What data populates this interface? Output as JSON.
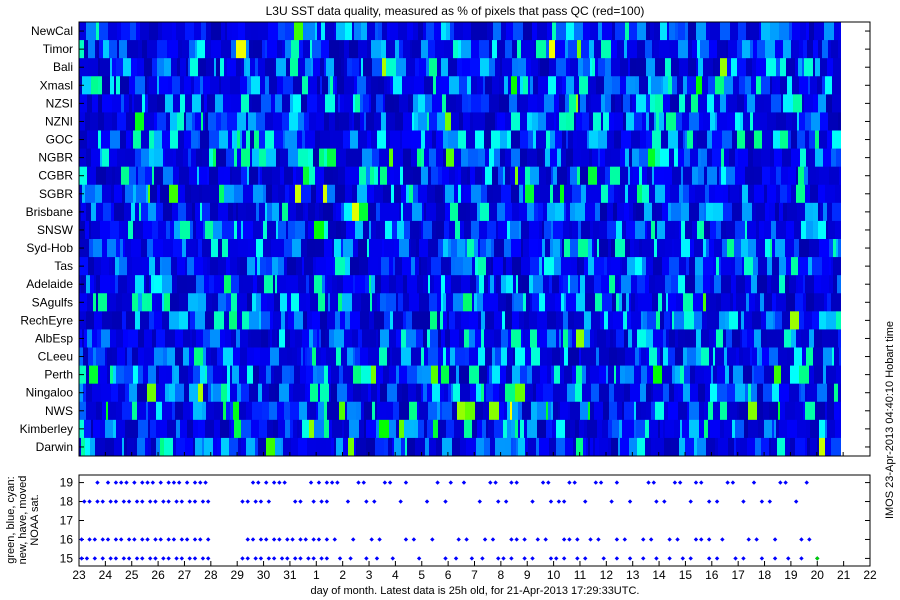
{
  "chart_data": [
    {
      "type": "heatmap",
      "title": "L3U SST data quality, measured as % of pixels that pass QC (red=100)",
      "rows": [
        "NewCal",
        "Timor",
        "Bali",
        "Xmasl",
        "NZSI",
        "NZNI",
        "GOC",
        "NGBR",
        "CGBR",
        "SGBR",
        "Brisbane",
        "SNSW",
        "Syd-Hob",
        "Tas",
        "Adelaide",
        "SAgulfs",
        "RechEyre",
        "AlbEsp",
        "CLeeu",
        "Perth",
        "Ningaloo",
        "NWS",
        "Kimberley",
        "Darwin"
      ],
      "xlim": [
        23,
        52
      ],
      "value_range": [
        0,
        100
      ],
      "colorscale": [
        "#00008f",
        "#0000ff",
        "#00ffff",
        "#00ff00",
        "#ffff00",
        "#ff0000"
      ],
      "grid": false,
      "right_label": "IMOS 23-Apr-2013 04:40:10 Hobart time"
    },
    {
      "type": "scatter",
      "ylabel": [
        "green, blue, cyan:",
        "new, have, moved",
        "NOAA sat."
      ],
      "xlabel": "day of month. Latest data is 25h old, for 21-Apr-2013 17:29:33UTC.",
      "x_tick_labels": [
        "23",
        "24",
        "25",
        "26",
        "27",
        "28",
        "29",
        "30",
        "31",
        "1",
        "2",
        "3",
        "4",
        "5",
        "6",
        "7",
        "8",
        "9",
        "10",
        "11",
        "12",
        "13",
        "14",
        "15",
        "16",
        "17",
        "18",
        "19",
        "20",
        "21",
        "22"
      ],
      "xlim": [
        23,
        53
      ],
      "ylim": [
        14.6,
        19.4
      ],
      "y_ticks": [
        15,
        16,
        17,
        18,
        19
      ],
      "series": [
        {
          "sat": 15,
          "x": [
            23.1,
            23.3,
            23.6,
            23.9,
            24.2,
            24.4,
            24.7,
            24.9,
            25.2,
            25.4,
            25.7,
            25.9,
            26.2,
            26.4,
            26.7,
            26.9,
            27.2,
            27.4,
            27.7,
            27.9,
            29.2,
            29.4,
            29.7,
            29.9,
            30.2,
            30.4,
            30.7,
            30.9,
            31.2,
            31.4,
            31.7,
            31.9,
            32.2,
            32.4,
            32.9,
            33.3,
            33.9,
            34.3,
            34.9,
            35.9,
            36.9,
            37.3,
            37.9,
            38.3,
            38.9,
            39.1,
            39.4,
            39.9,
            40.2,
            40.9,
            41.1,
            41.4,
            41.9,
            42.2,
            42.9,
            43.4,
            43.9,
            44.4,
            44.9,
            45.4,
            45.9,
            46.2,
            46.9,
            47.2,
            47.9,
            48.2,
            48.9,
            49.4,
            49.9,
            50.4,
            51.0
          ],
          "color": "#0000ff"
        },
        {
          "sat": 15,
          "x": [
            51.0
          ],
          "color": "#00d000"
        },
        {
          "sat": 16,
          "x": [
            23.1,
            23.4,
            23.6,
            23.9,
            24.1,
            24.4,
            24.6,
            24.9,
            25.1,
            25.4,
            25.6,
            25.9,
            26.1,
            26.4,
            26.6,
            26.9,
            27.1,
            27.4,
            27.6,
            27.9,
            29.4,
            29.6,
            29.9,
            30.1,
            30.4,
            30.6,
            30.9,
            31.1,
            31.4,
            31.6,
            31.9,
            32.1,
            32.4,
            32.7,
            33.4,
            34.1,
            34.4,
            35.4,
            35.7,
            36.4,
            37.4,
            37.7,
            38.4,
            38.7,
            39.4,
            39.6,
            39.9,
            40.4,
            40.7,
            41.4,
            41.6,
            41.9,
            42.4,
            42.7,
            43.4,
            43.7,
            44.4,
            44.7,
            45.4,
            45.7,
            46.4,
            46.6,
            46.9,
            47.4,
            48.4,
            48.7,
            49.4,
            50.4,
            50.7
          ],
          "color": "#0000ff"
        },
        {
          "sat": 18,
          "x": [
            23.2,
            23.4,
            23.7,
            23.9,
            24.2,
            24.4,
            24.7,
            24.9,
            25.2,
            25.4,
            25.7,
            25.9,
            26.2,
            26.4,
            26.7,
            26.9,
            27.2,
            27.4,
            27.7,
            27.9,
            29.2,
            29.4,
            29.7,
            29.9,
            30.2,
            31.2,
            31.4,
            31.9,
            32.2,
            32.4,
            33.2,
            33.9,
            34.2,
            35.2,
            36.2,
            36.9,
            38.2,
            38.9,
            39.2,
            40.2,
            40.9,
            41.2,
            41.4,
            42.2,
            43.2,
            43.9,
            44.9,
            45.2,
            46.2,
            46.9,
            47.2,
            48.2,
            48.9,
            49.2,
            50.2
          ],
          "color": "#0000ff"
        },
        {
          "sat": 19,
          "x": [
            23.7,
            24.1,
            24.4,
            24.6,
            24.8,
            25.1,
            25.4,
            25.6,
            25.8,
            26.1,
            26.4,
            26.6,
            26.8,
            27.1,
            27.4,
            27.6,
            27.8,
            29.6,
            29.8,
            30.1,
            30.4,
            30.6,
            30.8,
            31.8,
            32.1,
            32.4,
            32.6,
            32.8,
            33.6,
            33.8,
            34.6,
            34.8,
            35.4,
            36.6,
            37.1,
            37.6,
            38.6,
            38.8,
            39.4,
            39.6,
            40.6,
            40.8,
            41.6,
            41.8,
            42.6,
            42.8,
            43.4,
            44.6,
            44.8,
            45.6,
            45.8,
            46.4,
            46.6,
            47.6,
            47.8,
            48.6,
            49.6,
            49.8,
            50.6
          ],
          "color": "#0000ff"
        }
      ]
    }
  ]
}
